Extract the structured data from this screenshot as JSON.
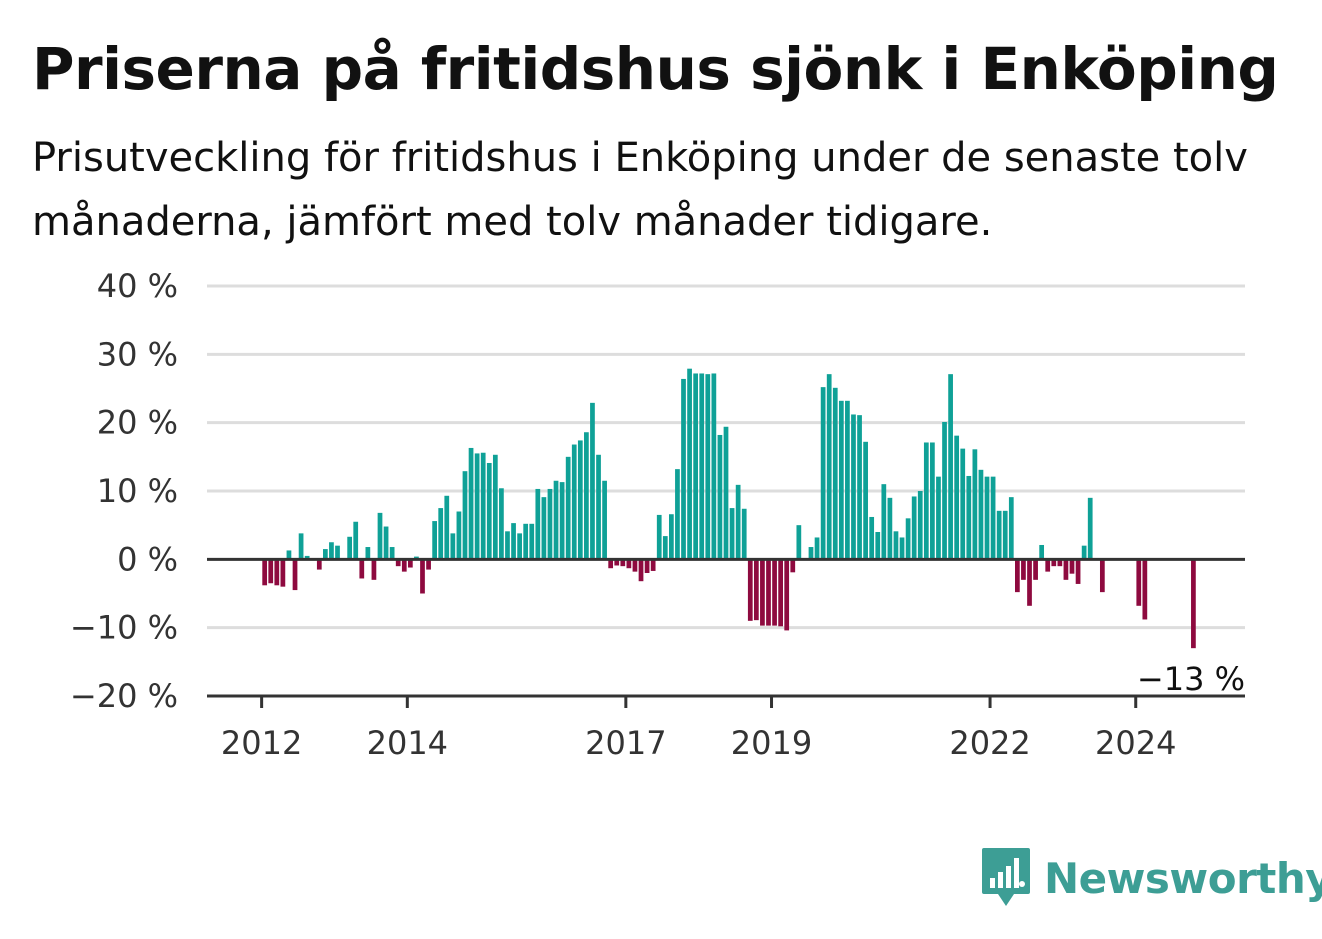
{
  "header": {
    "title": "Priserna på fritidshus sjönk i Enköping",
    "subtitle": "Prisutveckling för fritidshus i Enköping under de senaste tolv månaderna, jämfört med tolv månader tidigare."
  },
  "brand": {
    "name": "Newsworthy",
    "icon": "newsworthy-logo-icon",
    "color": "#3d9e95"
  },
  "colors": {
    "positive": "#0fa197",
    "negative": "#8e0a3f",
    "grid": "#dddddd",
    "zero_line": "#333333"
  },
  "chart_data": {
    "type": "bar",
    "title": "Priserna på fritidshus sjönk i Enköping",
    "subtitle": "Prisutveckling för fritidshus i Enköping under de senaste tolv månaderna, jämfört med tolv månader tidigare.",
    "xlabel": "",
    "ylabel": "",
    "ylim": [
      -20,
      40
    ],
    "y_ticks": [
      -20,
      -10,
      0,
      10,
      20,
      30,
      40
    ],
    "y_tick_labels": [
      "−20 %",
      "−10 %",
      "0 %",
      "10 %",
      "20 %",
      "30 %",
      "40 %"
    ],
    "x_range": [
      2011.25,
      2025.5
    ],
    "x_ticks": [
      2012,
      2014,
      2017,
      2019,
      2022,
      2024
    ],
    "x_tick_labels": [
      "2012",
      "2014",
      "2017",
      "2019",
      "2022",
      "2024"
    ],
    "grid": true,
    "annotation": {
      "text": "−13 %",
      "x": "2024-10",
      "value": -13
    },
    "x": [
      "2012-01",
      "2012-02",
      "2012-03",
      "2012-04",
      "2012-05",
      "2012-06",
      "2012-07",
      "2012-08",
      "2012-09",
      "2012-10",
      "2012-11",
      "2012-12",
      "2013-01",
      "2013-02",
      "2013-03",
      "2013-04",
      "2013-05",
      "2013-06",
      "2013-07",
      "2013-08",
      "2013-09",
      "2013-10",
      "2013-11",
      "2013-12",
      "2014-01",
      "2014-02",
      "2014-03",
      "2014-04",
      "2014-05",
      "2014-06",
      "2014-07",
      "2014-08",
      "2014-09",
      "2014-10",
      "2014-11",
      "2014-12",
      "2015-01",
      "2015-02",
      "2015-03",
      "2015-04",
      "2015-05",
      "2015-06",
      "2015-07",
      "2015-08",
      "2015-09",
      "2015-10",
      "2015-11",
      "2015-12",
      "2016-01",
      "2016-02",
      "2016-03",
      "2016-04",
      "2016-05",
      "2016-06",
      "2016-07",
      "2016-08",
      "2016-09",
      "2016-10",
      "2016-11",
      "2016-12",
      "2017-01",
      "2017-02",
      "2017-03",
      "2017-04",
      "2017-05",
      "2017-06",
      "2017-07",
      "2017-08",
      "2017-09",
      "2017-10",
      "2017-11",
      "2017-12",
      "2018-01",
      "2018-02",
      "2018-03",
      "2018-04",
      "2018-05",
      "2018-06",
      "2018-07",
      "2018-08",
      "2018-09",
      "2018-10",
      "2018-11",
      "2018-12",
      "2019-01",
      "2019-02",
      "2019-03",
      "2019-04",
      "2019-05",
      "2019-06",
      "2019-07",
      "2019-08",
      "2019-09",
      "2019-10",
      "2019-11",
      "2019-12",
      "2020-01",
      "2020-02",
      "2020-03",
      "2020-04",
      "2020-05",
      "2020-06",
      "2020-07",
      "2020-08",
      "2020-09",
      "2020-10",
      "2020-11",
      "2020-12",
      "2021-01",
      "2021-02",
      "2021-03",
      "2021-04",
      "2021-05",
      "2021-06",
      "2021-07",
      "2021-08",
      "2021-09",
      "2021-10",
      "2021-11",
      "2021-12",
      "2022-01",
      "2022-02",
      "2022-03",
      "2022-04",
      "2022-05",
      "2022-06",
      "2022-07",
      "2022-08",
      "2022-09",
      "2022-10",
      "2022-11",
      "2022-12",
      "2023-01",
      "2023-02",
      "2023-03",
      "2023-04",
      "2023-05",
      "2023-06",
      "2023-07",
      "2023-08",
      "2023-09",
      "2023-10",
      "2023-11",
      "2023-12",
      "2024-01",
      "2024-02",
      "2024-03",
      "2024-04",
      "2024-05",
      "2024-06",
      "2024-07",
      "2024-08",
      "2024-09",
      "2024-10"
    ],
    "values": [
      -3.8,
      -3.5,
      -3.8,
      -4,
      1.3,
      -4.5,
      3.8,
      0.5,
      null,
      -1.5,
      1.5,
      2.5,
      2,
      null,
      3.3,
      5.5,
      -2.8,
      1.8,
      -3,
      6.8,
      4.8,
      1.8,
      -1,
      -1.8,
      -1.2,
      0.4,
      -5,
      -1.5,
      5.6,
      7.5,
      9.3,
      3.8,
      7,
      12.9,
      16.3,
      15.5,
      15.6,
      14.1,
      15.3,
      10.4,
      4.1,
      5.3,
      3.8,
      5.2,
      5.2,
      10.3,
      9.1,
      10.3,
      11.5,
      11.3,
      15,
      16.8,
      17.4,
      18.6,
      22.9,
      15.3,
      11.5,
      -1.3,
      -0.9,
      -1,
      -1.3,
      -1.8,
      -3.2,
      -2,
      -1.7,
      6.5,
      3.4,
      6.6,
      13.2,
      26.4,
      27.9,
      27.2,
      27.2,
      27.1,
      27.2,
      18.2,
      19.4,
      7.5,
      10.9,
      7.4,
      -9,
      -8.9,
      -9.7,
      -9.7,
      -9.7,
      -9.8,
      -10.4,
      -1.9,
      5,
      null,
      1.8,
      3.2,
      25.2,
      27.1,
      25.1,
      23.2,
      23.2,
      21.2,
      21.1,
      17.2,
      6.2,
      4,
      11,
      9,
      4.1,
      3.2,
      6,
      9.2,
      10,
      17.1,
      17.1,
      12.1,
      20.1,
      27.1,
      18.1,
      16.2,
      12.2,
      16.1,
      13.1,
      12.1,
      12.1,
      7.1,
      7.1,
      9.1,
      -4.8,
      -3,
      -6.8,
      -3,
      2.1,
      -1.8,
      -1,
      -1,
      -3,
      -2.1,
      -3.6,
      2,
      9,
      null,
      -4.8,
      null,
      null,
      null,
      null,
      null,
      -6.8,
      -8.8,
      null,
      null,
      null,
      null,
      null,
      null,
      null,
      -13
    ]
  }
}
